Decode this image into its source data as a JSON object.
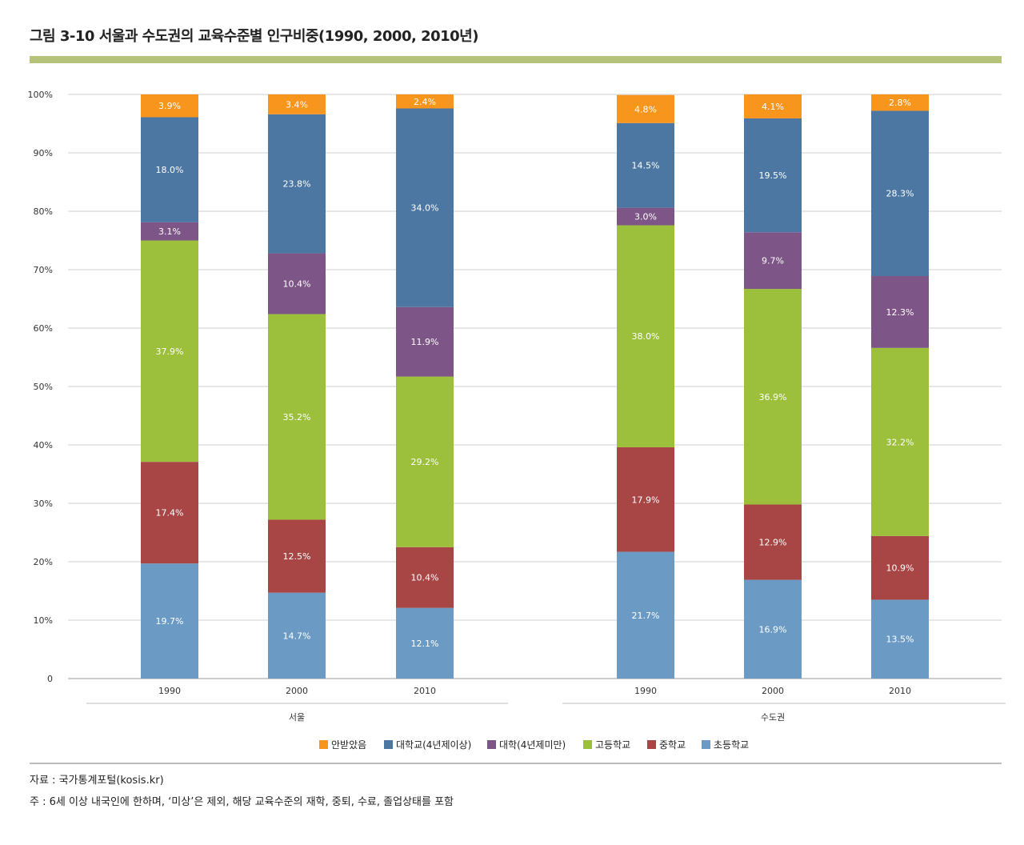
{
  "title": "그림 3-10 서울과 수도권의 교육수준별 인구비중(1990, 2000, 2010년)",
  "source": "자료 : 국가통계포털(kosis.kr)",
  "note": "주 : 6세 이상 내국인에 한하며, ‘미상’은 제외, 해당  교육수준의 재학, 중퇴, 수료, 졸업상태를 포함",
  "chart_data": {
    "type": "bar",
    "stacked": true,
    "ylim": [
      0,
      100
    ],
    "y_ticks": [
      "0",
      "10%",
      "20%",
      "30%",
      "40%",
      "50%",
      "60%",
      "70%",
      "80%",
      "90%",
      "100%"
    ],
    "groups": [
      {
        "name": "서울",
        "categories": [
          "1990",
          "2000",
          "2010"
        ]
      },
      {
        "name": "수도권",
        "categories": [
          "1990",
          "2000",
          "2010"
        ]
      }
    ],
    "series": [
      {
        "name": "초등학교",
        "color": "#6b9bc4",
        "values": [
          19.7,
          14.7,
          12.1,
          21.7,
          16.9,
          13.5
        ],
        "labels": [
          "19.7%",
          "14.7%",
          "12.1%",
          "21.7%",
          "16.9%",
          "13.5%"
        ]
      },
      {
        "name": "중학교",
        "color": "#a84646",
        "values": [
          17.4,
          12.5,
          10.4,
          17.9,
          12.9,
          10.9
        ],
        "labels": [
          "17.4%",
          "12.5%",
          "10.4%",
          "17.9%",
          "12.9%",
          "10.9%"
        ]
      },
      {
        "name": "고등학교",
        "color": "#9cbf3c",
        "values": [
          37.9,
          35.2,
          29.2,
          38.0,
          36.9,
          32.2
        ],
        "labels": [
          "37.9%",
          "35.2%",
          "29.2%",
          "38.0%",
          "36.9%",
          "32.2%"
        ]
      },
      {
        "name": "대학(4년제미만)",
        "color": "#7d5586",
        "values": [
          3.1,
          10.4,
          11.9,
          3.0,
          9.7,
          12.3
        ],
        "labels": [
          "3.1%",
          "10.4%",
          "11.9%",
          "3.0%",
          "9.7%",
          "12.3%"
        ]
      },
      {
        "name": "대학교(4년제이상)",
        "color": "#4b77a2",
        "values": [
          18.0,
          23.8,
          34.0,
          14.5,
          19.5,
          28.3
        ],
        "labels": [
          "18.0%",
          "23.8%",
          "34.0%",
          "14.5%",
          "19.5%",
          "28.3%"
        ]
      },
      {
        "name": "안받았음",
        "color": "#f7951d",
        "values": [
          3.9,
          3.4,
          2.4,
          4.8,
          4.1,
          2.8
        ],
        "labels": [
          "3.9%",
          "3.4%",
          "2.4%",
          "4.8%",
          "4.1%",
          "2.8%"
        ]
      }
    ],
    "legend": {
      "position": "bottom-center",
      "order": [
        "안받았음",
        "대학교(4년제이상)",
        "대학(4년제미만)",
        "고등학교",
        "중학교",
        "초등학교"
      ]
    }
  }
}
